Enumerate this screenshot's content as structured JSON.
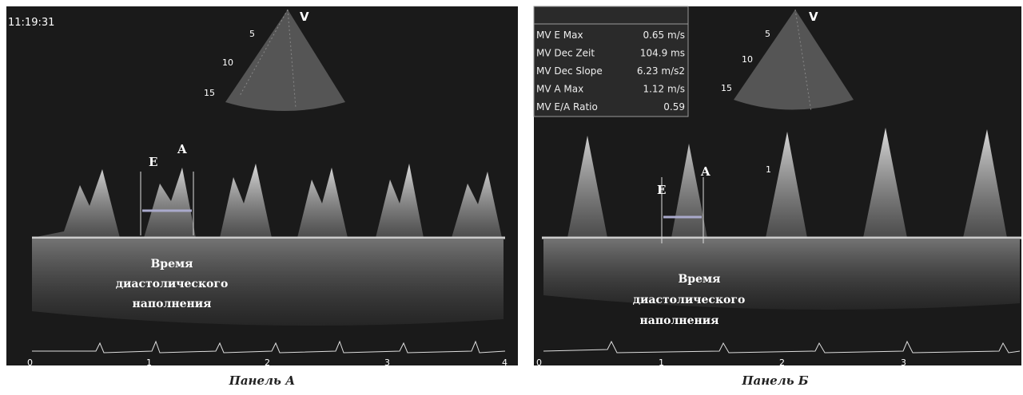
{
  "panel_a": {
    "timestamp": "11:19:31",
    "probe_mark": "V",
    "depths": [
      "5",
      "10",
      "15"
    ],
    "wave_labels": [
      "E",
      "A"
    ],
    "annotation": [
      "Время",
      "диастолического",
      "наполнения"
    ],
    "time_axis": [
      "0",
      "1",
      "2",
      "3",
      "4"
    ],
    "caption": "Панель А"
  },
  "panel_b": {
    "measurements": [
      [
        "MV E Max",
        "0.65 m/s"
      ],
      [
        "MV Dec Zeit",
        "104.9 ms"
      ],
      [
        "MV Dec Slope",
        "6.23 m/s2"
      ],
      [
        "MV A Max",
        "1.12 m/s"
      ],
      [
        "MV E/A Ratio",
        "0.59"
      ]
    ],
    "probe_mark": "V",
    "depths": [
      "5",
      "10",
      "15"
    ],
    "wave_labels": [
      "E",
      "A"
    ],
    "cursor_label": "1",
    "annotation": [
      "Время",
      "диастолического",
      "наполнения"
    ],
    "time_axis": [
      "0",
      "1",
      "2",
      "3"
    ],
    "caption": "Панель Б"
  }
}
